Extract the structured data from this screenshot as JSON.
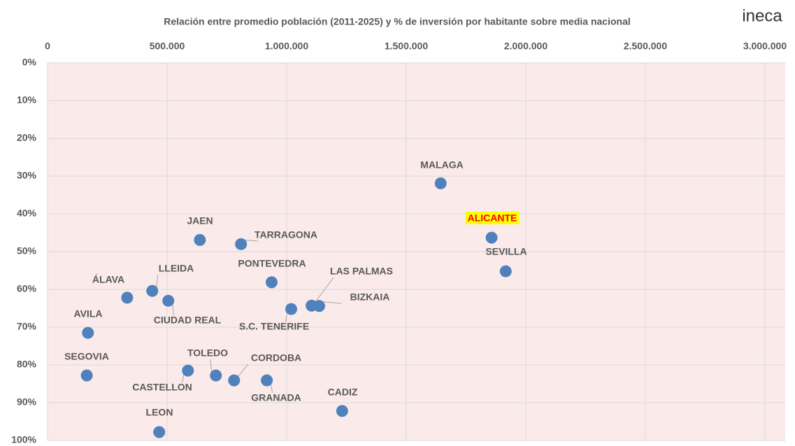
{
  "chart_data": {
    "type": "scatter",
    "title": "Relación entre promedio población (2011-2025) y % de inversión por habitante sobre media nacional",
    "logo": "ineca",
    "xlim": [
      0,
      3000000
    ],
    "xticks": [
      0,
      {
        "value": 500000,
        "label": "500.000"
      },
      {
        "value": 1000000,
        "label": "1.000.000"
      },
      {
        "value": 1500000,
        "label": "1.500.000"
      },
      {
        "value": 2000000,
        "label": "2.000.000"
      },
      {
        "value": 2500000,
        "label": "2.500.000"
      },
      {
        "value": 3000000,
        "label": "3.000.000"
      }
    ],
    "ylim": [
      0,
      100
    ],
    "y_inverted": true,
    "yticks": [
      {
        "value": 0,
        "label": "0%"
      },
      {
        "value": 10,
        "label": "10%"
      },
      {
        "value": 20,
        "label": "20%"
      },
      {
        "value": 30,
        "label": "30%"
      },
      {
        "value": 40,
        "label": "40%"
      },
      {
        "value": 50,
        "label": "50%"
      },
      {
        "value": 60,
        "label": "60%"
      },
      {
        "value": 70,
        "label": "70%"
      },
      {
        "value": 80,
        "label": "80%"
      },
      {
        "value": 90,
        "label": "90%"
      },
      {
        "value": 100,
        "label": "100%"
      }
    ],
    "grid": true,
    "series": [
      {
        "color": "#4f81bd",
        "labels": [
          "MALAGA",
          "ALICANTE",
          "SEVILLA",
          "JAEN",
          "TARRAGONA",
          "PONTEVEDRA",
          "LAS PALMAS",
          "BIZKAIA",
          "S.C. TENERIFE",
          "ÁLAVA",
          "LLEIDA",
          "CIUDAD REAL",
          "AVILA",
          "SEGOVIA",
          "CASTELLON",
          "TOLEDO",
          "CORDOBA",
          "GRANADA",
          "CADIZ",
          "LEON"
        ],
        "x": [
          1644000,
          1857000,
          1916000,
          637000,
          809000,
          937000,
          1104000,
          1136000,
          1019000,
          333000,
          438000,
          505000,
          169000,
          164000,
          587000,
          704000,
          780000,
          917000,
          1232000,
          467000
        ],
        "values": [
          31.9,
          46.3,
          55.2,
          46.9,
          48.0,
          58.1,
          64.3,
          64.4,
          65.2,
          62.2,
          60.4,
          63.0,
          71.5,
          82.8,
          81.5,
          82.8,
          84.1,
          84.1,
          92.2,
          97.8
        ]
      }
    ],
    "highlight": {
      "name": "ALICANTE",
      "color": "#ff0000",
      "background": "#ffff00"
    }
  }
}
